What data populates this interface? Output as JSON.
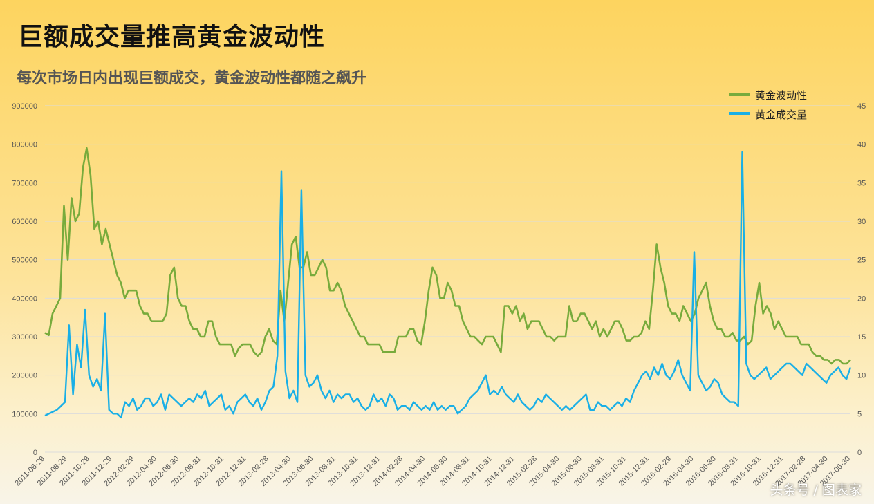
{
  "header": {
    "title": "巨额成交量推高黄金波动性",
    "subtitle": "每次市场日内出现巨额成交，黄金波动性都随之飙升"
  },
  "watermark": "头条号 / 图表家",
  "colors": {
    "volatility": "#78ab3c",
    "volume": "#19afe6",
    "grid": "#dcdcdc"
  },
  "chart_data": {
    "type": "line",
    "title": "巨额成交量推高黄金波动性",
    "subtitle": "每次市场日内出现巨额成交，黄金波动性都随之飙升",
    "grid": true,
    "legend_position": "top-right",
    "y_left": {
      "min": 0,
      "max": 900000,
      "ticks": [
        "0",
        "100000",
        "200000",
        "300000",
        "400000",
        "500000",
        "600000",
        "700000",
        "800000",
        "900000"
      ]
    },
    "y_right": {
      "min": 0,
      "max": 45,
      "ticks": [
        "0",
        "5",
        "10",
        "15",
        "20",
        "25",
        "30",
        "35",
        "40",
        "45"
      ]
    },
    "x_labels": [
      "2011-06-29",
      "2011-08-29",
      "2011-10-29",
      "2011-12-29",
      "2012-02-29",
      "2012-04-30",
      "2012-06-30",
      "2012-08-31",
      "2012-10-31",
      "2012-12-31",
      "2013-02-28",
      "2013-04-30",
      "2013-06-30",
      "2013-08-31",
      "2013-10-31",
      "2013-12-31",
      "2014-02-28",
      "2014-04-30",
      "2014-06-30",
      "2014-08-31",
      "2014-10-31",
      "2014-12-31",
      "2015-02-28",
      "2015-04-30",
      "2015-06-30",
      "2015-08-31",
      "2015-10-31",
      "2015-12-31",
      "2016-02-29",
      "2016-04-30",
      "2016-06-30",
      "2016-08-31",
      "2016-10-31",
      "2016-12-31",
      "2017-02-28",
      "2017-04-30",
      "2017-06-30"
    ],
    "series": [
      {
        "name": "黄金波动性",
        "axis": "right",
        "values": [
          15.5,
          15.2,
          18,
          19,
          20,
          32,
          25,
          33,
          30,
          31,
          37,
          39.5,
          36,
          29,
          30,
          27,
          29,
          27,
          25,
          23,
          22,
          20,
          21,
          21,
          21,
          19,
          18,
          18,
          17,
          17,
          17,
          17,
          18,
          23,
          24,
          20,
          19,
          19,
          17,
          16,
          16,
          15,
          15,
          17,
          17,
          15,
          14,
          14,
          14,
          14,
          12.5,
          13.5,
          14,
          14,
          14,
          13,
          12.5,
          13,
          15,
          16,
          14.5,
          14,
          21,
          17,
          22,
          27,
          28,
          24,
          24,
          26,
          23,
          23,
          24,
          25,
          24,
          21,
          21,
          22,
          21,
          19,
          18,
          17,
          16,
          15,
          15,
          14,
          14,
          14,
          14,
          13,
          13,
          13,
          13,
          15,
          15,
          15,
          16,
          16,
          14.5,
          14,
          17,
          21,
          24,
          23,
          20,
          20,
          22,
          21,
          19,
          19,
          17,
          16,
          15,
          15,
          14.5,
          14,
          15,
          15,
          15,
          14,
          13,
          19,
          19,
          18,
          19,
          17,
          18,
          16,
          17,
          17,
          17,
          16,
          15,
          15,
          14.5,
          15,
          15,
          15,
          19,
          17,
          17,
          18,
          18,
          17,
          16,
          17,
          15,
          16,
          15,
          16,
          17,
          17,
          16,
          14.5,
          14.5,
          15,
          15,
          15.5,
          17,
          16,
          21,
          27,
          24,
          22,
          19,
          18,
          18,
          17,
          19,
          18,
          17,
          18,
          20,
          21,
          22,
          19,
          17,
          16,
          16,
          15,
          15,
          15.5,
          14.5,
          14.5,
          15,
          14,
          14.5,
          19,
          22,
          18,
          19,
          18,
          16,
          17,
          16,
          15,
          15,
          15,
          15,
          14,
          14,
          14,
          13,
          12.5,
          12.5,
          12,
          12,
          11.5,
          12,
          12,
          11.5,
          11.5,
          12
        ]
      },
      {
        "name": "黄金成交量",
        "axis": "left",
        "values": [
          95000,
          100000,
          105000,
          110000,
          120000,
          130000,
          330000,
          150000,
          280000,
          220000,
          370000,
          200000,
          170000,
          190000,
          160000,
          360000,
          110000,
          100000,
          100000,
          90000,
          130000,
          120000,
          140000,
          110000,
          120000,
          140000,
          140000,
          120000,
          130000,
          150000,
          110000,
          150000,
          140000,
          130000,
          120000,
          130000,
          140000,
          130000,
          150000,
          140000,
          160000,
          120000,
          130000,
          140000,
          150000,
          110000,
          120000,
          100000,
          130000,
          140000,
          150000,
          130000,
          120000,
          140000,
          110000,
          130000,
          160000,
          170000,
          250000,
          730000,
          210000,
          140000,
          160000,
          130000,
          680000,
          200000,
          170000,
          180000,
          200000,
          160000,
          140000,
          160000,
          130000,
          150000,
          140000,
          150000,
          150000,
          130000,
          140000,
          120000,
          110000,
          120000,
          150000,
          130000,
          140000,
          120000,
          150000,
          140000,
          110000,
          120000,
          120000,
          110000,
          130000,
          120000,
          110000,
          120000,
          110000,
          130000,
          110000,
          120000,
          110000,
          120000,
          120000,
          100000,
          110000,
          120000,
          140000,
          150000,
          160000,
          180000,
          200000,
          150000,
          160000,
          150000,
          170000,
          150000,
          140000,
          130000,
          150000,
          130000,
          120000,
          110000,
          120000,
          140000,
          130000,
          150000,
          140000,
          130000,
          120000,
          110000,
          120000,
          110000,
          120000,
          130000,
          140000,
          150000,
          110000,
          110000,
          130000,
          120000,
          120000,
          110000,
          120000,
          130000,
          120000,
          140000,
          130000,
          160000,
          180000,
          200000,
          210000,
          190000,
          220000,
          200000,
          230000,
          200000,
          190000,
          210000,
          240000,
          200000,
          180000,
          160000,
          520000,
          200000,
          180000,
          160000,
          170000,
          190000,
          180000,
          150000,
          140000,
          130000,
          130000,
          120000,
          780000,
          230000,
          200000,
          190000,
          200000,
          210000,
          220000,
          190000,
          200000,
          210000,
          220000,
          230000,
          230000,
          220000,
          210000,
          200000,
          230000,
          220000,
          210000,
          200000,
          190000,
          180000,
          200000,
          210000,
          220000,
          200000,
          190000,
          220000
        ]
      }
    ]
  }
}
